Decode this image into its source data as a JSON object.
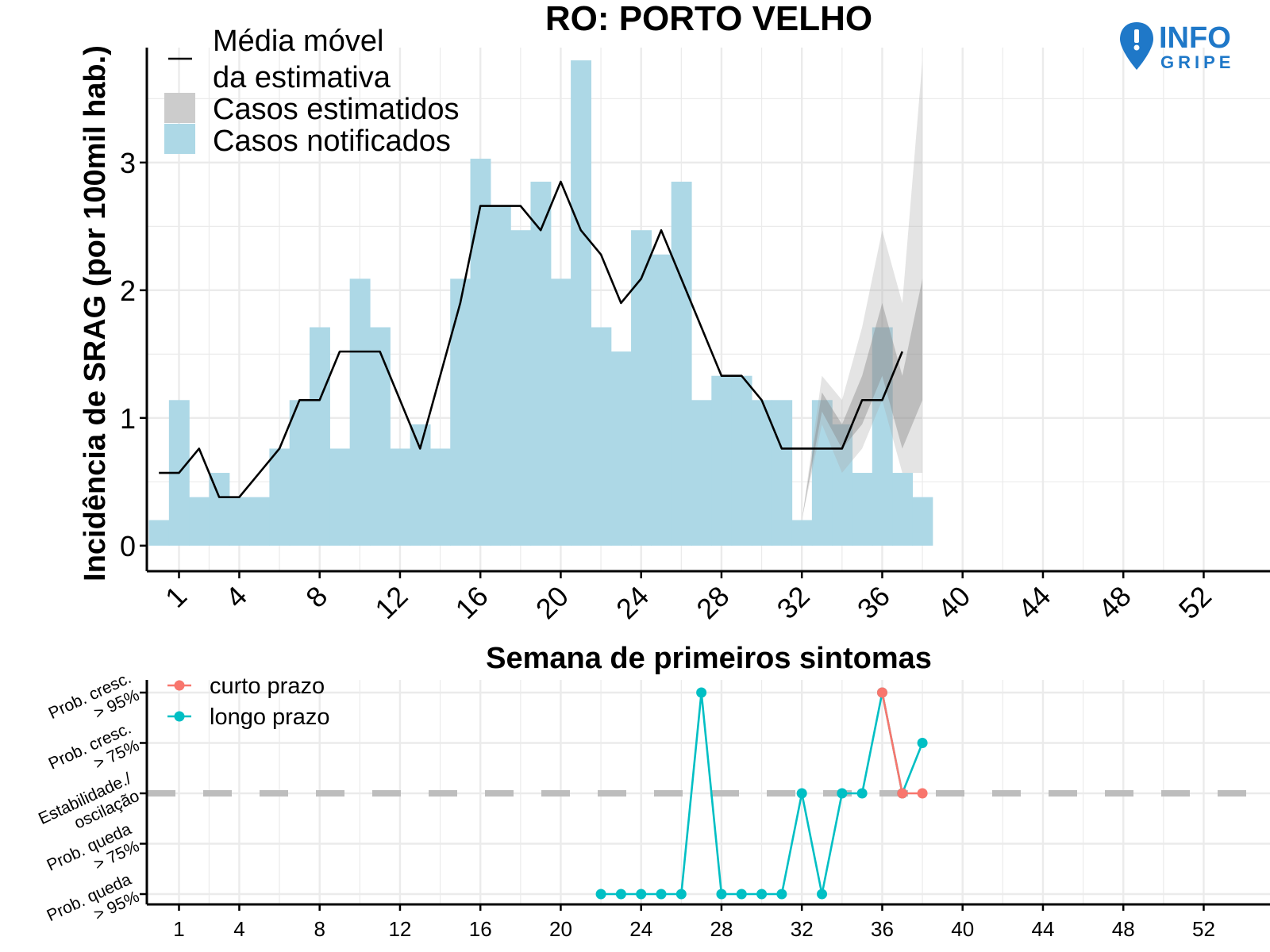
{
  "title": "RO: PORTO VELHO",
  "logo": {
    "main": "INFO",
    "sub": "GRIPE",
    "color": "#1f78c8"
  },
  "colors": {
    "notified": "#add8e6",
    "estimated_outer": "#e3e3e3",
    "estimated_inner": "#bdbdbd",
    "line": "#000000",
    "grid": "#ebebeb",
    "curto": "#f8766d",
    "longo": "#00bfc4",
    "dashed": "#bdbdbd"
  },
  "chart_data": [
    {
      "type": "bar",
      "ylabel": "Incidência de SRAG (por 100mil hab.)",
      "xlabel": "Semana de primeiros sintomas",
      "xlim": [
        -0.6,
        55.3
      ],
      "ylim": [
        -0.2,
        3.9
      ],
      "yticks": [
        0,
        1,
        2,
        3
      ],
      "xticks": [
        1,
        4,
        8,
        12,
        16,
        20,
        24,
        28,
        32,
        36,
        40,
        44,
        48,
        52
      ],
      "legend_position": "top-left",
      "legend": {
        "line_label_1": "Média móvel",
        "line_label_2": "da estimativa",
        "estimated_label": "Casos estimatidos",
        "notified_label": "Casos notificados"
      },
      "series": [
        {
          "name": "Casos notificados",
          "type": "bar",
          "x": [
            0,
            1,
            2,
            3,
            4,
            5,
            6,
            7,
            8,
            9,
            10,
            11,
            12,
            13,
            14,
            15,
            16,
            17,
            18,
            19,
            20,
            21,
            22,
            23,
            24,
            25,
            26,
            27,
            28,
            29,
            30,
            31,
            32,
            33,
            34,
            35,
            36,
            37,
            38
          ],
          "values": [
            0.2,
            1.14,
            0.38,
            0.57,
            0.38,
            0.38,
            0.76,
            1.14,
            1.71,
            0.76,
            2.09,
            1.71,
            0.76,
            0.95,
            0.76,
            2.09,
            3.03,
            2.66,
            2.47,
            2.85,
            2.09,
            3.8,
            1.71,
            1.52,
            2.47,
            2.28,
            2.85,
            1.14,
            1.33,
            1.33,
            1.14,
            1.14,
            0.2,
            1.14,
            0.95,
            0.57,
            1.71,
            0.57,
            0.38
          ]
        },
        {
          "name": "Casos estimatidos",
          "type": "area",
          "x": [
            32,
            33,
            34,
            35,
            36,
            37,
            38
          ],
          "outer_low": [
            0.2,
            0.95,
            0.57,
            0.76,
            1.14,
            0.57,
            0.57
          ],
          "outer_high": [
            0.2,
            1.33,
            1.14,
            1.71,
            2.47,
            1.9,
            3.8
          ],
          "inner_low": [
            0.2,
            1.05,
            0.76,
            0.95,
            1.33,
            0.76,
            1.14
          ],
          "inner_high": [
            0.2,
            1.2,
            0.95,
            1.33,
            1.9,
            1.33,
            2.09
          ]
        },
        {
          "name": "Média móvel da estimativa",
          "type": "line",
          "x": [
            0,
            1,
            2,
            3,
            4,
            5,
            6,
            7,
            8,
            9,
            10,
            11,
            12,
            13,
            14,
            15,
            16,
            17,
            18,
            19,
            20,
            21,
            22,
            23,
            24,
            25,
            26,
            27,
            28,
            29,
            30,
            31,
            32,
            33,
            34,
            35,
            36,
            37
          ],
          "values": [
            0.57,
            0.57,
            0.76,
            0.38,
            0.38,
            0.57,
            0.76,
            1.14,
            1.14,
            1.52,
            1.52,
            1.52,
            1.14,
            0.76,
            1.33,
            1.9,
            2.66,
            2.66,
            2.66,
            2.47,
            2.85,
            2.47,
            2.28,
            1.9,
            2.09,
            2.47,
            2.09,
            1.71,
            1.33,
            1.33,
            1.14,
            0.76,
            0.76,
            0.76,
            0.76,
            1.14,
            1.14,
            1.52
          ]
        }
      ]
    },
    {
      "type": "line",
      "xlabel": "",
      "xlim": [
        -0.6,
        55.3
      ],
      "categories": [
        "Prob. queda > 95%",
        "Prob. queda > 75%",
        "Estabilidade./ oscilação",
        "Prob. cresc. > 75%",
        "Prob. cresc. > 95%"
      ],
      "ytick_labels": [
        [
          "Prob. queda",
          "> 95%"
        ],
        [
          "Prob. queda",
          "> 75%"
        ],
        [
          "Estabilidade./",
          "oscilação"
        ],
        [
          "Prob. cresc.",
          "> 75%"
        ],
        [
          "Prob. cresc.",
          "> 95%"
        ]
      ],
      "reference_level": 0,
      "legend_position": "top-left",
      "series": [
        {
          "name": "curto prazo",
          "x": [
            36,
            37,
            38
          ],
          "values": [
            2,
            0,
            0
          ]
        },
        {
          "name": "longo prazo",
          "x": [
            22,
            23,
            24,
            25,
            26,
            27,
            28,
            29,
            30,
            31,
            32,
            33,
            34,
            35,
            36,
            37,
            38
          ],
          "values": [
            -2,
            -2,
            -2,
            -2,
            -2,
            2,
            -2,
            -2,
            -2,
            -2,
            0,
            -2,
            0,
            0,
            2,
            0,
            1
          ]
        }
      ]
    }
  ]
}
